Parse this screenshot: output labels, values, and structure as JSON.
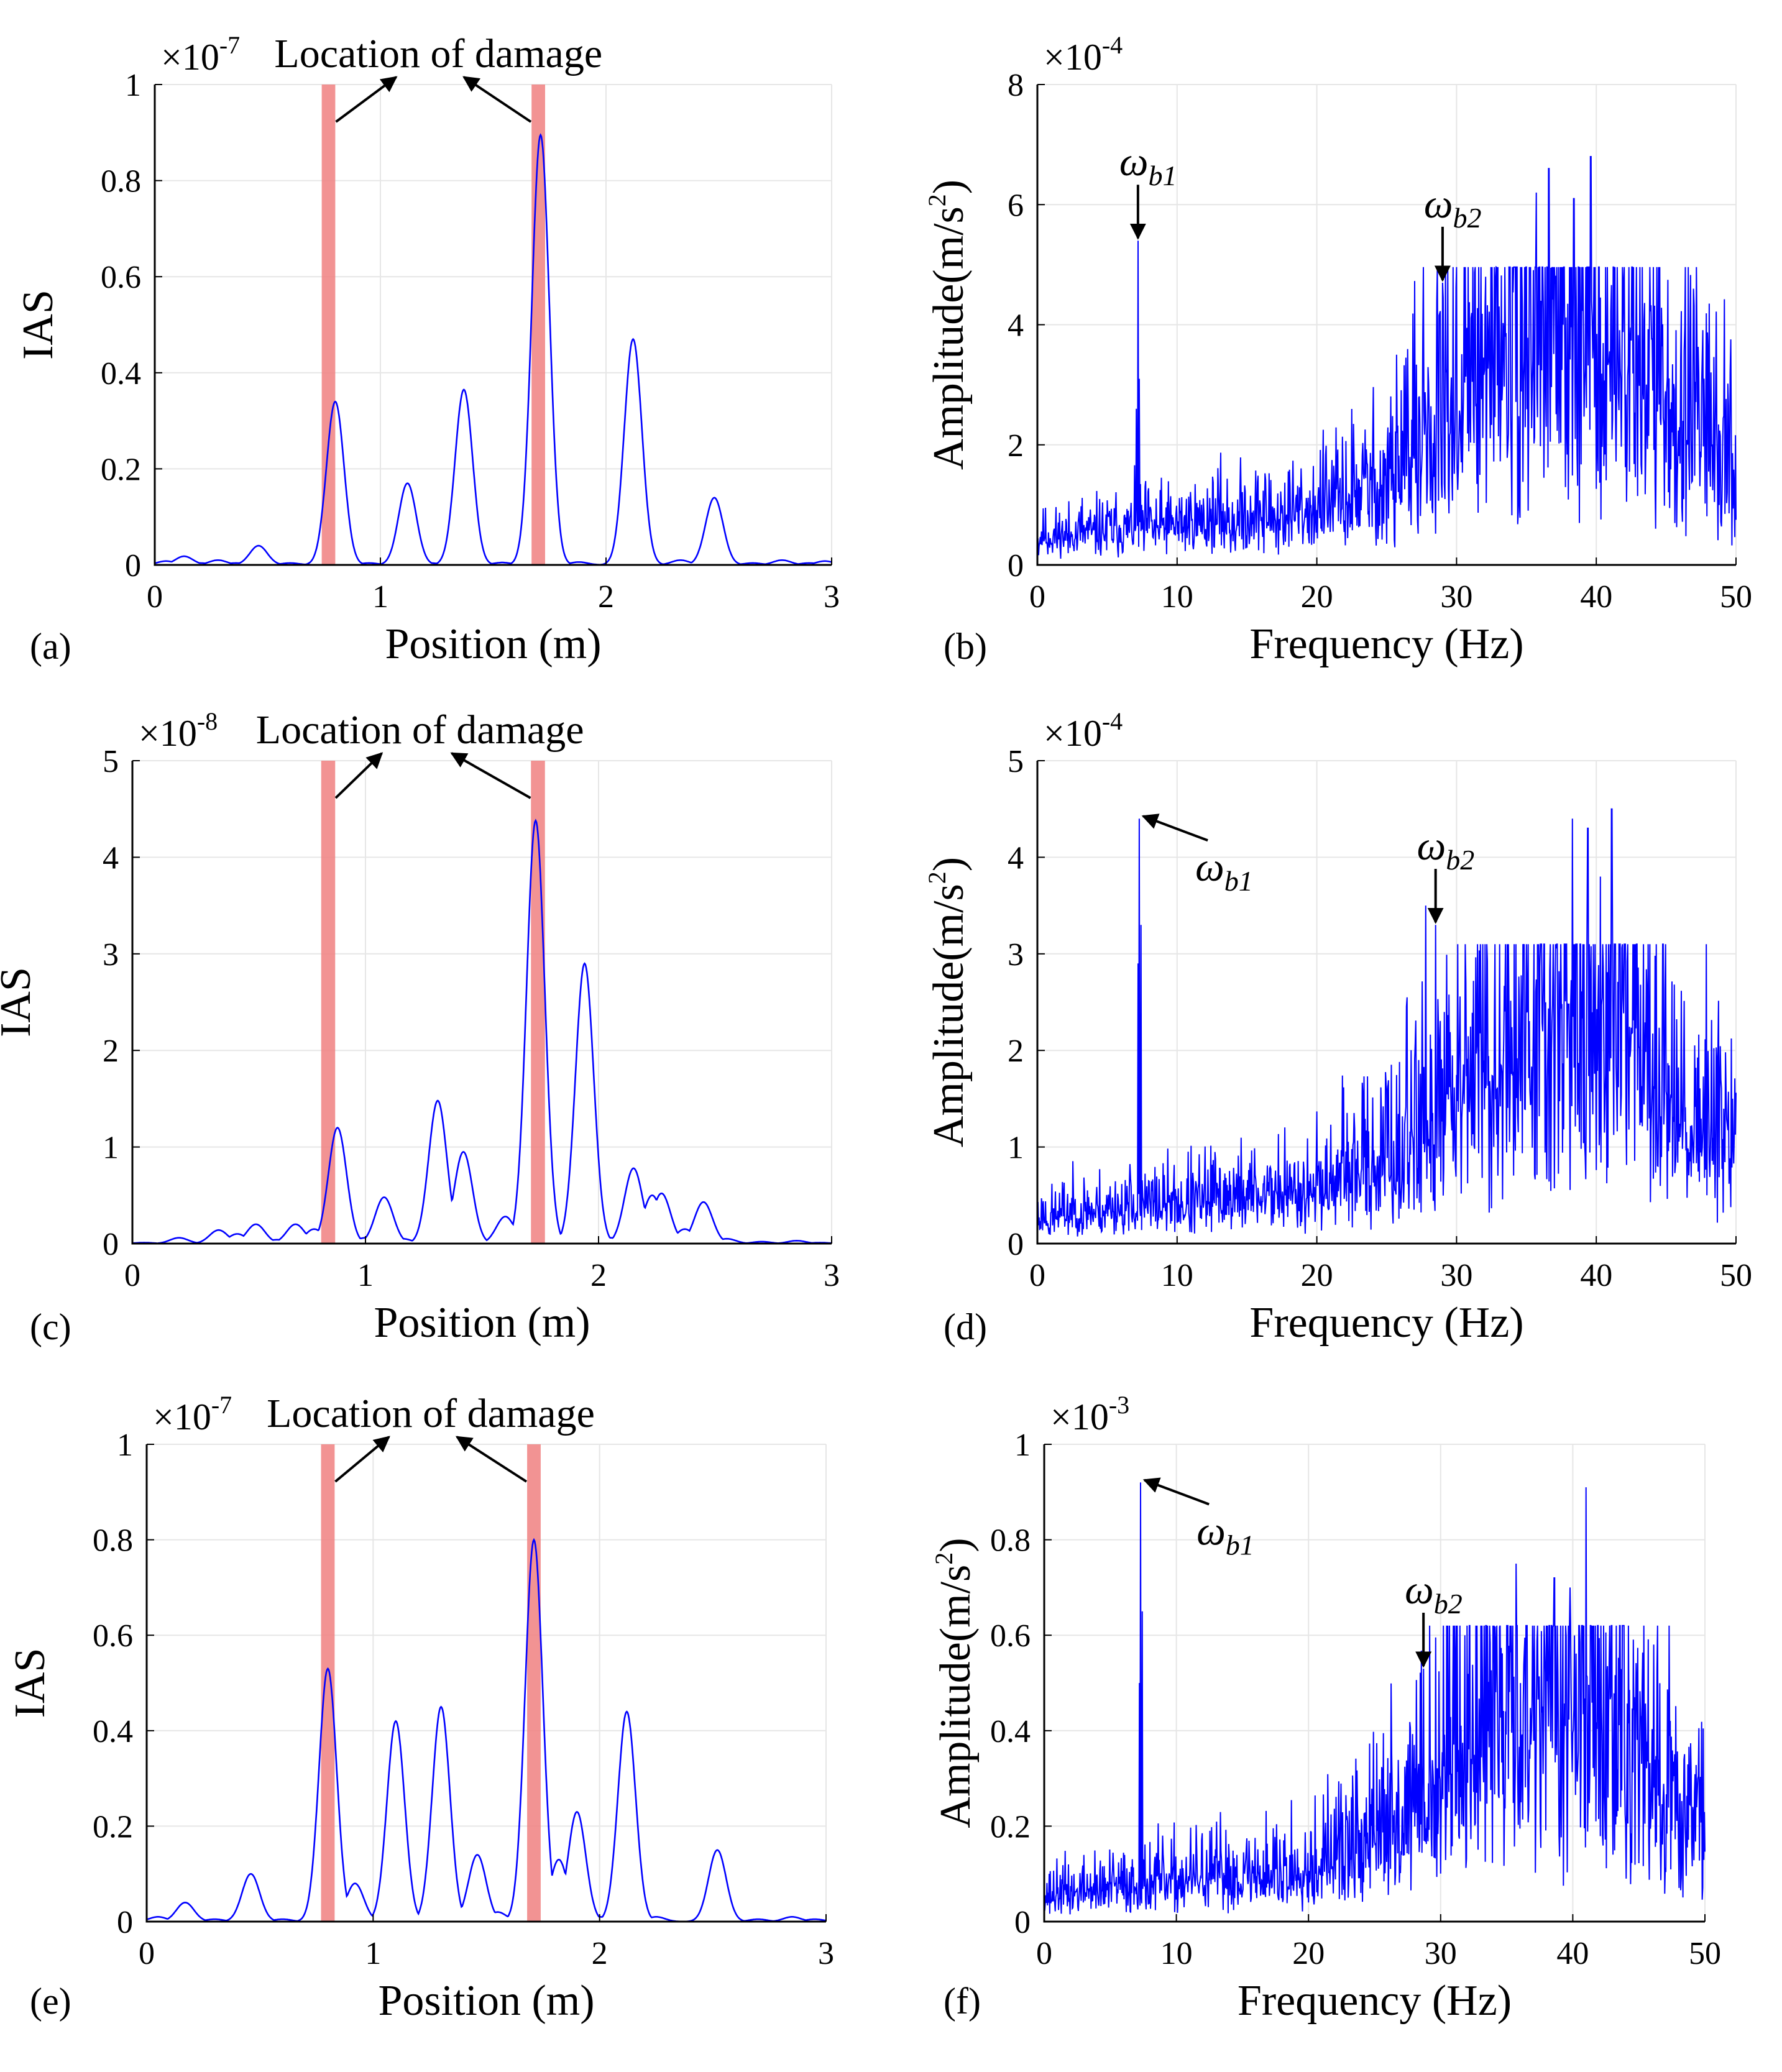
{
  "colors": {
    "curve": "#0000ff",
    "band": "#f08080",
    "grid": "#e6e6e6",
    "axis": "#000000"
  },
  "chart_data": [
    {
      "id": "a",
      "type": "line",
      "panel_label": "(a)",
      "xlabel": "Position (m)",
      "ylabel": "IAS",
      "xlim": [
        0,
        3
      ],
      "ylim": [
        0,
        1
      ],
      "xticks": [
        0,
        1,
        2,
        3
      ],
      "xtick_labels": [
        "0",
        "1",
        "2",
        "3"
      ],
      "yticks": [
        0,
        0.2,
        0.4,
        0.6,
        0.8,
        1
      ],
      "ytick_labels": [
        "0",
        "0.2",
        "0.4",
        "0.6",
        "0.8",
        "1"
      ],
      "multiplier": {
        "base": "×10",
        "exponent": "-7"
      },
      "annotation": "Location of damage",
      "damage_bands": [
        [
          0.74,
          0.8
        ],
        [
          1.67,
          1.73
        ]
      ],
      "peaks": [
        [
          0.05,
          0.008
        ],
        [
          0.13,
          0.018
        ],
        [
          0.2,
          0.004
        ],
        [
          0.28,
          0.01
        ],
        [
          0.36,
          0.004
        ],
        [
          0.46,
          0.04
        ],
        [
          0.6,
          0.004
        ],
        [
          0.8,
          0.34
        ],
        [
          0.95,
          0.004
        ],
        [
          1.12,
          0.17
        ],
        [
          1.22,
          0.004
        ],
        [
          1.37,
          0.365
        ],
        [
          1.54,
          0.005
        ],
        [
          1.71,
          0.895
        ],
        [
          1.88,
          0.006
        ],
        [
          2.12,
          0.47
        ],
        [
          2.33,
          0.01
        ],
        [
          2.48,
          0.14
        ],
        [
          2.65,
          0.004
        ],
        [
          2.78,
          0.01
        ],
        [
          2.9,
          0.004
        ],
        [
          2.97,
          0.008
        ]
      ]
    },
    {
      "id": "b",
      "type": "line",
      "panel_label": "(b)",
      "xlabel": "Frequency (Hz)",
      "ylabel": "Amplitude(m/s²)",
      "xlim": [
        0,
        50
      ],
      "ylim": [
        0,
        8
      ],
      "xticks": [
        0,
        10,
        20,
        30,
        40,
        50
      ],
      "xtick_labels": [
        "0",
        "10",
        "20",
        "30",
        "40",
        "50"
      ],
      "yticks": [
        0,
        2,
        4,
        6,
        8
      ],
      "ytick_labels": [
        "0",
        "2",
        "4",
        "6",
        "8"
      ],
      "multiplier": {
        "base": "×10",
        "exponent": "-4"
      },
      "omega_labels": [
        {
          "symbol": "ω",
          "sub": "b1",
          "freq": 7.2,
          "value": 5.4
        },
        {
          "symbol": "ω",
          "sub": "b2",
          "freq": 29.0,
          "value": 4.7
        }
      ],
      "spectrum": {
        "n": 1200,
        "seed": 11,
        "peaks": [
          [
            7.2,
            5.4
          ],
          [
            7.3,
            3.1
          ],
          [
            7.1,
            2.6
          ],
          [
            29.0,
            4.7
          ],
          [
            36.6,
            6.6
          ],
          [
            39.6,
            6.8
          ],
          [
            35.7,
            6.2
          ],
          [
            38.4,
            6.1
          ]
        ]
      }
    },
    {
      "id": "c",
      "type": "line",
      "panel_label": "(c)",
      "xlabel": "Position (m)",
      "ylabel": "IAS",
      "xlim": [
        0,
        3
      ],
      "ylim": [
        0,
        5
      ],
      "xticks": [
        0,
        1,
        2,
        3
      ],
      "xtick_labels": [
        "0",
        "1",
        "2",
        "3"
      ],
      "yticks": [
        0,
        1,
        2,
        3,
        4,
        5
      ],
      "ytick_labels": [
        "0",
        "1",
        "2",
        "3",
        "4",
        "5"
      ],
      "multiplier": {
        "base": "×10",
        "exponent": "-8"
      },
      "annotation": "Location of damage",
      "damage_bands": [
        [
          0.81,
          0.87
        ],
        [
          1.71,
          1.77
        ]
      ],
      "peaks": [
        [
          0.05,
          0.01
        ],
        [
          0.2,
          0.06
        ],
        [
          0.28,
          0.01
        ],
        [
          0.37,
          0.14
        ],
        [
          0.45,
          0.1
        ],
        [
          0.53,
          0.2
        ],
        [
          0.62,
          0.04
        ],
        [
          0.7,
          0.2
        ],
        [
          0.78,
          0.15
        ],
        [
          0.88,
          1.2
        ],
        [
          1.0,
          0.06
        ],
        [
          1.08,
          0.48
        ],
        [
          1.16,
          0.05
        ],
        [
          1.31,
          1.48
        ],
        [
          1.42,
          0.95
        ],
        [
          1.6,
          0.28
        ],
        [
          1.73,
          4.38
        ],
        [
          1.84,
          0.03
        ],
        [
          1.94,
          2.9
        ],
        [
          2.05,
          0.06
        ],
        [
          2.15,
          0.78
        ],
        [
          2.23,
          0.5
        ],
        [
          2.27,
          0.52
        ],
        [
          2.37,
          0.15
        ],
        [
          2.45,
          0.43
        ],
        [
          2.55,
          0.05
        ],
        [
          2.7,
          0.02
        ],
        [
          2.85,
          0.03
        ],
        [
          2.95,
          0.01
        ]
      ]
    },
    {
      "id": "d",
      "type": "line",
      "panel_label": "(d)",
      "xlabel": "Frequency (Hz)",
      "ylabel": "Amplitude(m/s²)",
      "xlim": [
        0,
        50
      ],
      "ylim": [
        0,
        5
      ],
      "xticks": [
        0,
        10,
        20,
        30,
        40,
        50
      ],
      "xtick_labels": [
        "0",
        "10",
        "20",
        "30",
        "40",
        "50"
      ],
      "yticks": [
        0,
        1,
        2,
        3,
        4,
        5
      ],
      "ytick_labels": [
        "0",
        "1",
        "2",
        "3",
        "4",
        "5"
      ],
      "multiplier": {
        "base": "×10",
        "exponent": "-4"
      },
      "omega_labels": [
        {
          "symbol": "ω",
          "sub": "b1",
          "freq": 7.3,
          "value": 4.4
        },
        {
          "symbol": "ω",
          "sub": "b2",
          "freq": 28.5,
          "value": 3.3
        }
      ],
      "spectrum": {
        "n": 1200,
        "seed": 23,
        "peaks": [
          [
            7.3,
            4.4
          ],
          [
            7.4,
            3.3
          ],
          [
            7.2,
            2.9
          ],
          [
            28.5,
            3.3
          ],
          [
            27.8,
            3.5
          ],
          [
            38.3,
            4.4
          ],
          [
            41.1,
            4.5
          ],
          [
            39.4,
            4.3
          ],
          [
            40.3,
            3.8
          ]
        ]
      }
    },
    {
      "id": "e",
      "type": "line",
      "panel_label": "(e)",
      "xlabel": "Position (m)",
      "ylabel": "IAS",
      "xlim": [
        0,
        3
      ],
      "ylim": [
        0,
        1
      ],
      "xticks": [
        0,
        1,
        2,
        3
      ],
      "xtick_labels": [
        "0",
        "1",
        "2",
        "3"
      ],
      "yticks": [
        0,
        0.2,
        0.4,
        0.6,
        0.8,
        1
      ],
      "ytick_labels": [
        "0",
        "0.2",
        "0.4",
        "0.6",
        "0.8",
        "1"
      ],
      "multiplier": {
        "base": "×10",
        "exponent": "-7"
      },
      "annotation": "Location of damage",
      "damage_bands": [
        [
          0.77,
          0.83
        ],
        [
          1.68,
          1.74
        ]
      ],
      "peaks": [
        [
          0.05,
          0.01
        ],
        [
          0.17,
          0.04
        ],
        [
          0.3,
          0.005
        ],
        [
          0.46,
          0.1
        ],
        [
          0.6,
          0.005
        ],
        [
          0.8,
          0.53
        ],
        [
          0.92,
          0.08
        ],
        [
          1.0,
          0.005
        ],
        [
          1.1,
          0.42
        ],
        [
          1.2,
          0.005
        ],
        [
          1.3,
          0.45
        ],
        [
          1.38,
          0.03
        ],
        [
          1.46,
          0.14
        ],
        [
          1.55,
          0.02
        ],
        [
          1.71,
          0.8
        ],
        [
          1.82,
          0.13
        ],
        [
          1.9,
          0.23
        ],
        [
          2.0,
          0.01
        ],
        [
          2.12,
          0.44
        ],
        [
          2.25,
          0.01
        ],
        [
          2.52,
          0.15
        ],
        [
          2.7,
          0.005
        ],
        [
          2.85,
          0.01
        ],
        [
          2.95,
          0.005
        ]
      ]
    },
    {
      "id": "f",
      "type": "line",
      "panel_label": "(f)",
      "xlabel": "Frequency (Hz)",
      "ylabel": "Amplitude(m/s²)",
      "xlim": [
        0,
        50
      ],
      "ylim": [
        0,
        1
      ],
      "xticks": [
        0,
        10,
        20,
        30,
        40,
        50
      ],
      "xtick_labels": [
        "0",
        "10",
        "20",
        "30",
        "40",
        "50"
      ],
      "yticks": [
        0,
        0.2,
        0.4,
        0.6,
        0.8,
        1
      ],
      "ytick_labels": [
        "0",
        "0.2",
        "0.4",
        "0.6",
        "0.8",
        "1"
      ],
      "multiplier": {
        "base": "×10",
        "exponent": "-3"
      },
      "omega_labels": [
        {
          "symbol": "ω",
          "sub": "b1",
          "freq": 7.3,
          "value": 0.92
        },
        {
          "symbol": "ω",
          "sub": "b2",
          "freq": 28.7,
          "value": 0.53
        }
      ],
      "spectrum": {
        "n": 1200,
        "seed": 37,
        "peaks": [
          [
            7.3,
            0.92
          ],
          [
            7.4,
            0.65
          ],
          [
            7.2,
            0.5
          ],
          [
            28.7,
            0.53
          ],
          [
            35.7,
            0.75
          ],
          [
            41.0,
            0.91
          ],
          [
            38.6,
            0.72
          ],
          [
            39.8,
            0.7
          ]
        ]
      }
    }
  ]
}
